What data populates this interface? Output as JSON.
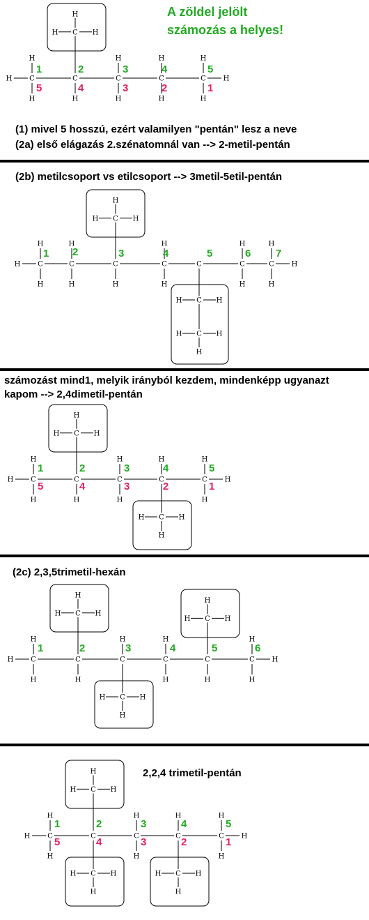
{
  "colors": {
    "green": "#22aa22",
    "pink": "#e0206a",
    "line": "#000000"
  },
  "atoms": {
    "carbon": "C",
    "hydrogen": "H"
  },
  "note": {
    "line1": "A zöldel jelölt",
    "line2": "számozás a helyes!"
  },
  "sections": [
    {
      "id": "s1",
      "text_lines": [
        "(1) mivel 5 hosszú, ezért valamilyen \"pentán\" lesz a neve",
        "(2a) első elágazás 2.szénatomnál van --> 2-metil-pentán"
      ],
      "green_numbers": [
        "1",
        "2",
        "3",
        "4",
        "5"
      ],
      "pink_numbers": [
        "5",
        "4",
        "3",
        "2",
        "1"
      ]
    },
    {
      "id": "s2",
      "text_lines": [
        "(2b) metilcsoport vs etilcsoport --> 3metil-5etil-pentán"
      ],
      "green_numbers": [
        "1",
        "2",
        "3",
        "4",
        "5",
        "6",
        "7"
      ],
      "pink_numbers": []
    },
    {
      "id": "s3",
      "text_lines": [
        "számozást mind1, melyik irányból kezdem, mindenképp ugyanazt",
        "kapom --> 2,4dimetil-pentán"
      ],
      "green_numbers": [
        "1",
        "2",
        "3",
        "4",
        "5"
      ],
      "pink_numbers": [
        "5",
        "4",
        "3",
        "2",
        "1"
      ]
    },
    {
      "id": "s4",
      "text_lines": [
        "(2c) 2,3,5trimetil-hexán"
      ],
      "green_numbers": [
        "1",
        "2",
        "3",
        "4",
        "5",
        "6"
      ],
      "pink_numbers": []
    },
    {
      "id": "s5",
      "text_lines": [
        "2,2,4 trimetil-pentán"
      ],
      "green_numbers": [
        "1",
        "2",
        "3",
        "4",
        "5"
      ],
      "pink_numbers": [
        "5",
        "4",
        "3",
        "2",
        "1"
      ]
    }
  ]
}
